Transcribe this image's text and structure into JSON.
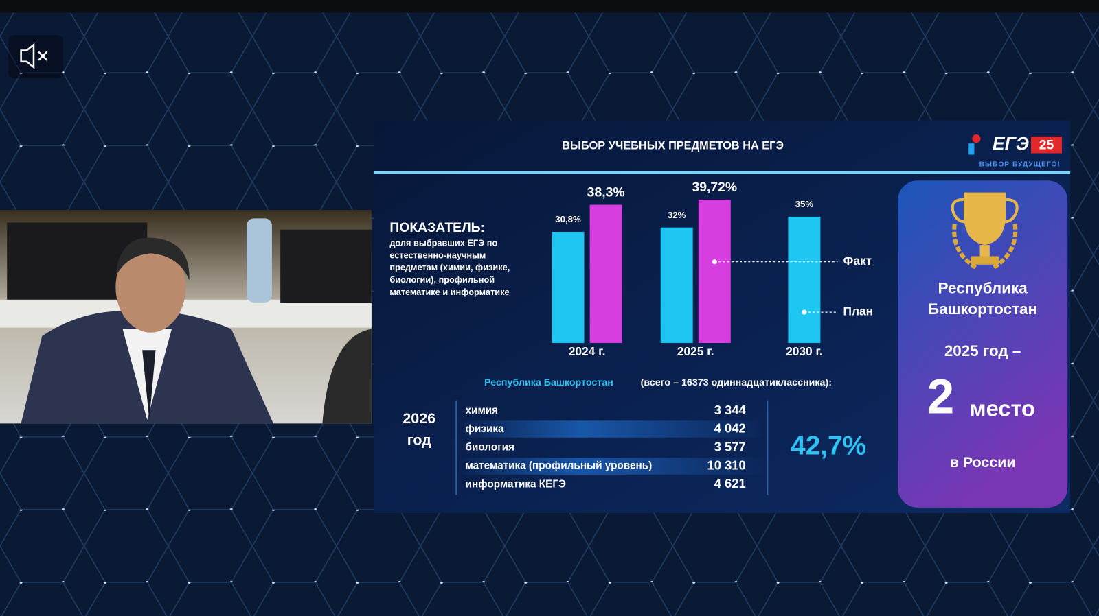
{
  "slide": {
    "title": "ВЫБОР УЧЕБНЫХ ПРЕДМЕТОВ НА ЕГЭ",
    "logo": {
      "text": "ЕГЭ",
      "badge": "25",
      "tagline": "ВЫБОР БУДУЩЕГО!"
    },
    "indicator": {
      "heading": "ПОКАЗАТЕЛЬ:",
      "lines": [
        "доля выбравших ЕГЭ по",
        "естественно-научным",
        "предметам (химии, физике,",
        "биологии), профильной",
        "математике и информатике"
      ]
    },
    "region_note": {
      "region": "Республика Башкортостан",
      "total": "(всего – 16373 одиннадцатиклассника):"
    },
    "year": [
      "2026",
      "год"
    ],
    "table": {
      "rows": [
        [
          "химия",
          "3 344"
        ],
        [
          "физика",
          "4 042"
        ],
        [
          "биология",
          "3 577"
        ],
        [
          "математика (профильный уровень)",
          "10 310"
        ],
        [
          "информатика КЕГЭ",
          "4 621"
        ]
      ]
    },
    "share": "42,7%",
    "award": {
      "region": [
        "Республика",
        "Башкортостан"
      ],
      "year": "2025 год –",
      "place": "2",
      "place_word": "место",
      "scope": "в России"
    }
  },
  "chart_data": {
    "type": "bar",
    "categories": [
      "2024 г.",
      "2025 г.",
      "2030 г."
    ],
    "ylim": [
      0,
      45
    ],
    "series": [
      {
        "name": "План",
        "color": "#1fc6f2",
        "values": [
          30.8,
          32,
          35
        ],
        "value_labels": [
          "30,8%",
          "32%",
          "35%"
        ]
      },
      {
        "name": "Факт",
        "color": "#d63ee0",
        "values": [
          38.3,
          39.72,
          null
        ],
        "value_labels": [
          "38,3%",
          "39,72%",
          null
        ]
      }
    ]
  }
}
